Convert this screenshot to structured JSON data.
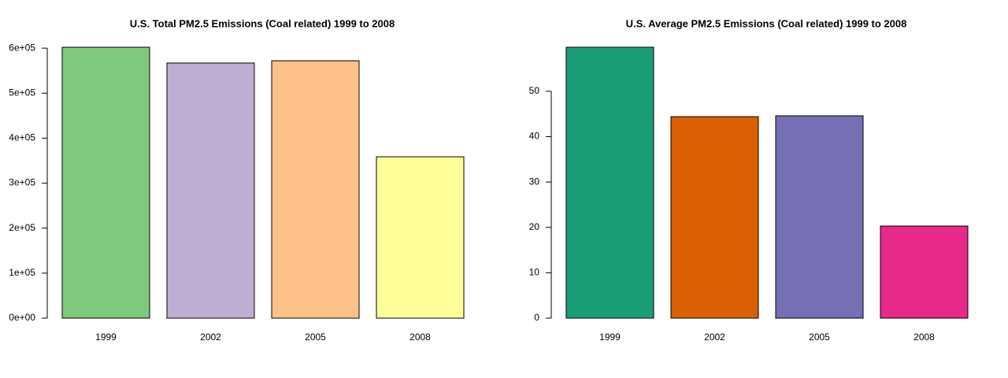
{
  "chart_data": [
    {
      "type": "bar",
      "title": "U.S. Total PM2.5 Emissions (Coal related) 1999 to 2008",
      "categories": [
        "1999",
        "2002",
        "2005",
        "2008"
      ],
      "values": [
        602000,
        567000,
        572000,
        358600
      ],
      "colors": [
        "#7fc97f",
        "#beaed4",
        "#fdc086",
        "#ffff99"
      ],
      "ylim": [
        0,
        602000
      ],
      "yticks": [
        {
          "value": 0,
          "label": "0e+00"
        },
        {
          "value": 100000,
          "label": "1e+05"
        },
        {
          "value": 200000,
          "label": "2e+05"
        },
        {
          "value": 300000,
          "label": "3e+05"
        },
        {
          "value": 400000,
          "label": "4e+05"
        },
        {
          "value": 500000,
          "label": "5e+05"
        },
        {
          "value": 600000,
          "label": "6e+05"
        }
      ]
    },
    {
      "type": "bar",
      "title": "U.S. Average PM2.5 Emissions (Coal related) 1999 to 2008",
      "categories": [
        "1999",
        "2002",
        "2005",
        "2008"
      ],
      "values": [
        59.7,
        44.4,
        44.6,
        20.3
      ],
      "colors": [
        "#1b9e77",
        "#d95f02",
        "#7570b3",
        "#e7298a"
      ],
      "ylim": [
        0,
        59.7
      ],
      "yticks": [
        0,
        10,
        20,
        30,
        40,
        50
      ]
    }
  ]
}
